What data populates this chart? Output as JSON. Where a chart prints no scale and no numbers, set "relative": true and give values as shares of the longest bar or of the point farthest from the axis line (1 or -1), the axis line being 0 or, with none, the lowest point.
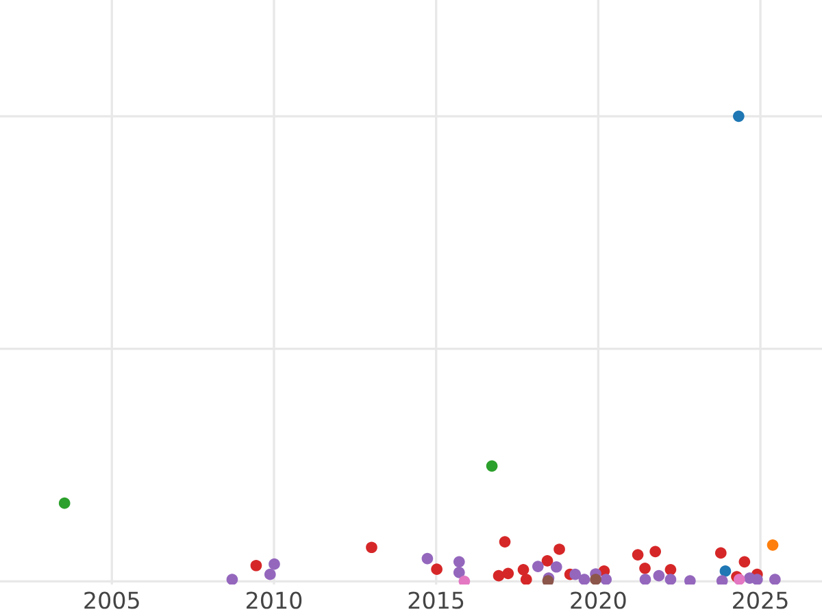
{
  "chart_data": {
    "type": "scatter",
    "relative": true,
    "grid": true,
    "marker": "circle",
    "xlim": [
      2001.55,
      2026.9
    ],
    "xticks": [
      2005,
      2010,
      2015,
      2020,
      2025
    ],
    "series": [
      {
        "color": "#2ca02c",
        "x": [
          2003.54,
          2016.72
        ],
        "values": [
          0.168,
          0.248
        ]
      },
      {
        "color": "#1f77b4",
        "x": [
          2024.33,
          2023.92
        ],
        "values": [
          1,
          0.022
        ]
      },
      {
        "color": "#ff7f0e",
        "x": [
          2025.38
        ],
        "values": [
          0.078
        ]
      },
      {
        "color": "#d62728",
        "x": [
          2009.45,
          2013.01,
          2015.02,
          2017.12,
          2016.93,
          2017.22,
          2017.69,
          2017.78,
          2018.43,
          2018.8,
          2019.13,
          2020.18,
          2021.22,
          2021.44,
          2021.76,
          2022.23,
          2023.78,
          2024.27,
          2024.51,
          2024.9
        ],
        "values": [
          0.034,
          0.073,
          0.026,
          0.085,
          0.012,
          0.017,
          0.025,
          0.004,
          0.044,
          0.069,
          0.015,
          0.022,
          0.057,
          0.028,
          0.064,
          0.025,
          0.061,
          0.01,
          0.042,
          0.015
        ]
      },
      {
        "color": "#9467bd",
        "x": [
          2008.71,
          2009.88,
          2010.01,
          2014.73,
          2015.71,
          2015.71,
          2018.14,
          2018.47,
          2018.71,
          2019.29,
          2019.57,
          2019.92,
          2020.24,
          2021.45,
          2021.87,
          2022.23,
          2022.83,
          2023.82,
          2024.67,
          2024.9,
          2025.45
        ],
        "values": [
          0.004,
          0.015,
          0.037,
          0.049,
          0.042,
          0.019,
          0.032,
          0.007,
          0.031,
          0.015,
          0.004,
          0.016,
          0.004,
          0.004,
          0.012,
          0.004,
          0.001,
          0.001,
          0.007,
          0.004,
          0.004
        ]
      },
      {
        "color": "#e377c2",
        "x": [
          2015.87,
          2024.35
        ],
        "values": [
          0,
          0.004
        ]
      },
      {
        "color": "#8c564b",
        "x": [
          2018.45,
          2019.92
        ],
        "values": [
          0.001,
          0.004
        ]
      }
    ]
  }
}
